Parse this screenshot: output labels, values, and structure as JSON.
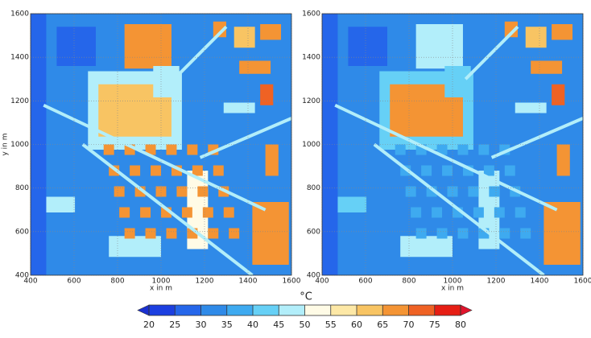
{
  "chart_data": [
    {
      "type": "heatmap",
      "xlabel": "x in m",
      "ylabel": "y in m",
      "xlim": [
        400,
        1600
      ],
      "ylim": [
        400,
        1600
      ],
      "xticks": [
        400,
        600,
        800,
        1000,
        1200,
        1400,
        1600
      ],
      "yticks": [
        400,
        600,
        800,
        1000,
        1200,
        1400,
        1600
      ],
      "grid": true
    },
    {
      "type": "heatmap",
      "xlabel": "x in m",
      "xlim": [
        400,
        1600
      ],
      "ylim": [
        400,
        1600
      ],
      "xticks": [
        400,
        600,
        800,
        1000,
        1200,
        1400,
        1600
      ],
      "yticks": [
        400,
        600,
        800,
        1000,
        1200,
        1400,
        1600
      ],
      "grid": true
    }
  ],
  "colorbar": {
    "label": "°C",
    "ticks": [
      20,
      25,
      30,
      35,
      40,
      45,
      50,
      55,
      60,
      65,
      70,
      75,
      80
    ],
    "colors": [
      "#1c3fe0",
      "#2566ea",
      "#2f8ae8",
      "#3eaaf0",
      "#66d0f6",
      "#b2eefa",
      "#fffbe6",
      "#fde8a6",
      "#f8c463",
      "#f49434",
      "#ef6224",
      "#e61e14"
    ],
    "under_color": "#1a30d0",
    "over_color": "#e0142c"
  }
}
